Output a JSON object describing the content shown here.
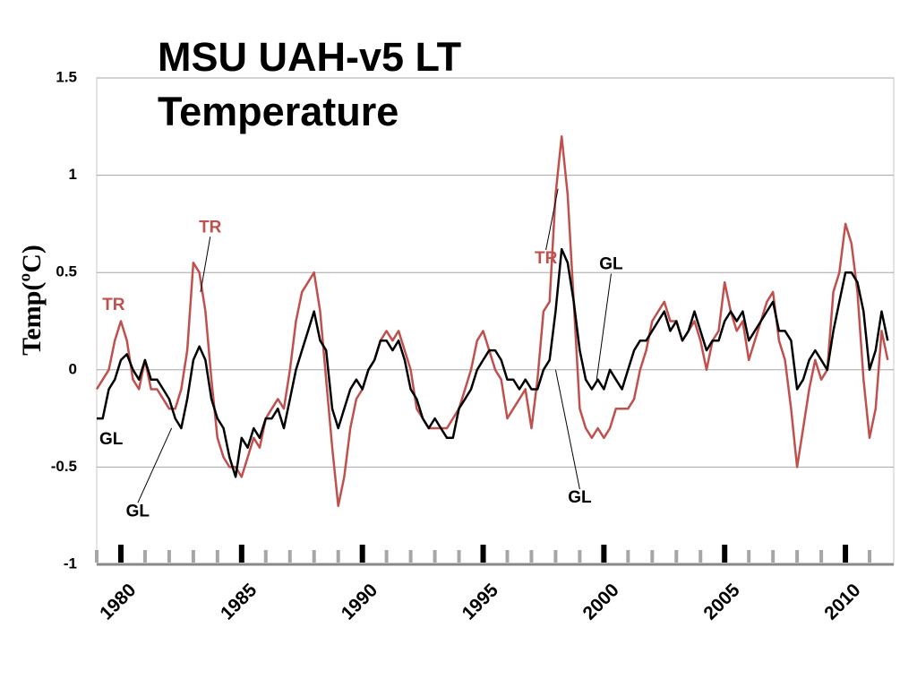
{
  "chart_data": {
    "type": "line",
    "title": "MSU UAH-v5 LT Temperature",
    "ylabel": "Temp(ºC)",
    "xlim": [
      1979,
      2012
    ],
    "ylim": [
      -1,
      1.5
    ],
    "xticks": [
      1980,
      1985,
      1990,
      1995,
      2000,
      2005,
      2010
    ],
    "xminorticks": [
      1979,
      1981,
      1982,
      1983,
      1984,
      1986,
      1987,
      1988,
      1989,
      1991,
      1992,
      1993,
      1994,
      1996,
      1997,
      1998,
      1999,
      2001,
      2002,
      2003,
      2004,
      2006,
      2007,
      2008,
      2009,
      2011
    ],
    "yticks": [
      1.5,
      1,
      0.5,
      0,
      -0.5,
      -1
    ],
    "grid": true,
    "x": [
      1979,
      1979.25,
      1979.5,
      1979.75,
      1980,
      1980.25,
      1980.5,
      1980.75,
      1981,
      1981.25,
      1981.5,
      1981.75,
      1982,
      1982.25,
      1982.5,
      1982.75,
      1983,
      1983.25,
      1983.5,
      1983.75,
      1984,
      1984.25,
      1984.5,
      1984.75,
      1985,
      1985.25,
      1985.5,
      1985.75,
      1986,
      1986.25,
      1986.5,
      1986.75,
      1987,
      1987.25,
      1987.5,
      1987.75,
      1988,
      1988.25,
      1988.5,
      1988.75,
      1989,
      1989.25,
      1989.5,
      1989.75,
      1990,
      1990.25,
      1990.5,
      1990.75,
      1991,
      1991.25,
      1991.5,
      1991.75,
      1992,
      1992.25,
      1992.5,
      1992.75,
      1993,
      1993.25,
      1993.5,
      1993.75,
      1994,
      1994.25,
      1994.5,
      1994.75,
      1995,
      1995.25,
      1995.5,
      1995.75,
      1996,
      1996.25,
      1996.5,
      1996.75,
      1997,
      1997.25,
      1997.5,
      1997.75,
      1998,
      1998.25,
      1998.5,
      1998.75,
      1999,
      1999.25,
      1999.5,
      1999.75,
      2000,
      2000.25,
      2000.5,
      2000.75,
      2001,
      2001.25,
      2001.5,
      2001.75,
      2002,
      2002.25,
      2002.5,
      2002.75,
      2003,
      2003.25,
      2003.5,
      2003.75,
      2004,
      2004.25,
      2004.5,
      2004.75,
      2005,
      2005.25,
      2005.5,
      2005.75,
      2006,
      2006.25,
      2006.5,
      2006.75,
      2007,
      2007.25,
      2007.5,
      2007.75,
      2008,
      2008.25,
      2008.5,
      2008.75,
      2009,
      2009.25,
      2009.5,
      2009.75,
      2010,
      2010.25,
      2010.5,
      2010.75,
      2011,
      2011.25,
      2011.5,
      2011.75
    ],
    "series": [
      {
        "name": "TR",
        "color": "#c0504d",
        "values": [
          -0.1,
          -0.05,
          0.0,
          0.15,
          0.25,
          0.15,
          -0.05,
          -0.1,
          0.05,
          -0.1,
          -0.1,
          -0.15,
          -0.2,
          -0.2,
          -0.1,
          0.1,
          0.55,
          0.5,
          0.3,
          -0.05,
          -0.35,
          -0.45,
          -0.5,
          -0.5,
          -0.55,
          -0.45,
          -0.35,
          -0.4,
          -0.25,
          -0.2,
          -0.15,
          -0.2,
          0.0,
          0.25,
          0.4,
          0.45,
          0.5,
          0.3,
          -0.05,
          -0.4,
          -0.7,
          -0.55,
          -0.3,
          -0.15,
          -0.1,
          0.0,
          0.05,
          0.15,
          0.2,
          0.15,
          0.2,
          0.1,
          0.0,
          -0.2,
          -0.25,
          -0.3,
          -0.3,
          -0.3,
          -0.3,
          -0.25,
          -0.2,
          -0.1,
          0.0,
          0.15,
          0.2,
          0.1,
          0.0,
          -0.05,
          -0.25,
          -0.2,
          -0.15,
          -0.1,
          -0.3,
          -0.05,
          0.3,
          0.35,
          0.9,
          1.2,
          0.9,
          0.35,
          -0.2,
          -0.3,
          -0.35,
          -0.3,
          -0.35,
          -0.3,
          -0.2,
          -0.2,
          -0.2,
          -0.15,
          0.0,
          0.1,
          0.25,
          0.3,
          0.35,
          0.25,
          0.25,
          0.15,
          0.2,
          0.25,
          0.15,
          0.0,
          0.15,
          0.2,
          0.45,
          0.3,
          0.2,
          0.25,
          0.05,
          0.15,
          0.25,
          0.35,
          0.4,
          0.15,
          0.05,
          -0.2,
          -0.5,
          -0.3,
          -0.1,
          0.05,
          -0.05,
          0.0,
          0.4,
          0.5,
          0.75,
          0.65,
          0.4,
          -0.05,
          -0.35,
          -0.2,
          0.2,
          0.05
        ]
      },
      {
        "name": "GL",
        "color": "#000000",
        "values": [
          -0.25,
          -0.25,
          -0.1,
          -0.05,
          0.05,
          0.08,
          0.0,
          -0.05,
          0.05,
          -0.05,
          -0.05,
          -0.1,
          -0.15,
          -0.25,
          -0.3,
          -0.15,
          0.05,
          0.12,
          0.05,
          -0.15,
          -0.25,
          -0.3,
          -0.45,
          -0.55,
          -0.35,
          -0.4,
          -0.3,
          -0.35,
          -0.25,
          -0.25,
          -0.2,
          -0.3,
          -0.15,
          0.0,
          0.1,
          0.2,
          0.3,
          0.15,
          0.1,
          -0.2,
          -0.3,
          -0.2,
          -0.1,
          -0.05,
          -0.1,
          0.0,
          0.05,
          0.15,
          0.15,
          0.1,
          0.15,
          0.05,
          -0.1,
          -0.15,
          -0.25,
          -0.3,
          -0.25,
          -0.3,
          -0.35,
          -0.35,
          -0.2,
          -0.15,
          -0.1,
          0.0,
          0.05,
          0.1,
          0.1,
          0.05,
          -0.05,
          -0.05,
          -0.1,
          -0.05,
          -0.1,
          -0.1,
          0.0,
          0.05,
          0.3,
          0.62,
          0.55,
          0.35,
          0.1,
          -0.05,
          -0.1,
          -0.05,
          -0.1,
          0.0,
          -0.05,
          -0.1,
          0.0,
          0.1,
          0.15,
          0.15,
          0.2,
          0.25,
          0.3,
          0.2,
          0.25,
          0.15,
          0.2,
          0.3,
          0.2,
          0.1,
          0.15,
          0.15,
          0.25,
          0.3,
          0.25,
          0.3,
          0.15,
          0.2,
          0.25,
          0.3,
          0.35,
          0.2,
          0.2,
          0.15,
          -0.1,
          -0.05,
          0.05,
          0.1,
          0.05,
          0.0,
          0.2,
          0.35,
          0.5,
          0.5,
          0.45,
          0.3,
          0.0,
          0.1,
          0.3,
          0.15
        ]
      }
    ],
    "annotations": [
      {
        "text": "TR",
        "x": 1979.7,
        "y": 0.33,
        "color": "#c0504d"
      },
      {
        "text": "TR",
        "x": 1983.7,
        "y": 0.73,
        "color": "#c0504d",
        "points_to": [
          1983.3,
          0.4
        ]
      },
      {
        "text": "TR",
        "x": 1997.6,
        "y": 0.57,
        "color": "#c0504d",
        "points_to": [
          1998.1,
          0.93
        ]
      },
      {
        "text": "GL",
        "x": 1979.6,
        "y": -0.36,
        "color": "#000000"
      },
      {
        "text": "GL",
        "x": 1980.7,
        "y": -0.73,
        "color": "#000000",
        "points_to": [
          1982.1,
          -0.3
        ]
      },
      {
        "text": "GL",
        "x": 2000.3,
        "y": 0.54,
        "color": "#000000",
        "points_to": [
          1999.7,
          -0.05
        ]
      },
      {
        "text": "GL",
        "x": 1999.0,
        "y": -0.66,
        "color": "#000000",
        "points_to": [
          1998.0,
          0.0
        ]
      }
    ]
  }
}
